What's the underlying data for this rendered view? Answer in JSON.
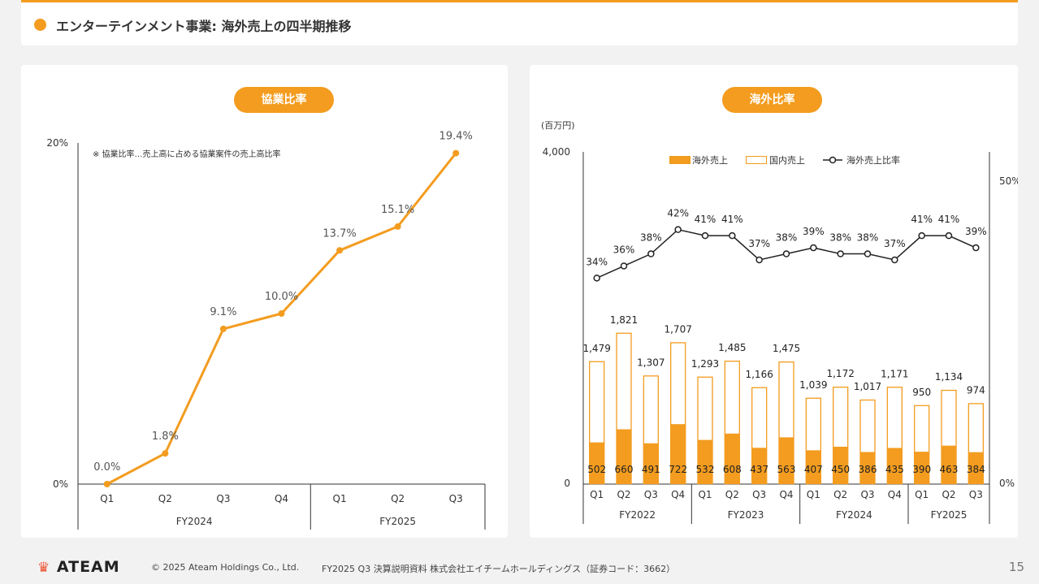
{
  "header": {
    "title": "エンターテインメント事業: 海外売上の四半期推移"
  },
  "colors": {
    "accent": "#f39c1f",
    "line_black": "#222222",
    "axis": "#333333"
  },
  "chart_data": [
    {
      "type": "line",
      "title": "協業比率",
      "note": "※  協業比率…売上高に占める協業案件の売上高比率",
      "quarters": [
        "Q1",
        "Q2",
        "Q3",
        "Q4",
        "Q1",
        "Q2",
        "Q3"
      ],
      "fiscal_years": [
        {
          "label": "FY2024",
          "count": 4
        },
        {
          "label": "FY2025",
          "count": 3
        }
      ],
      "values": [
        0.0,
        1.8,
        9.1,
        10.0,
        13.7,
        15.1,
        19.4
      ],
      "value_labels": [
        "0.0%",
        "1.8%",
        "9.1%",
        "10.0%",
        "13.7%",
        "15.1%",
        "19.4%"
      ],
      "y_min_label": "0%",
      "y_max_label": "20%",
      "ylim": [
        0,
        20
      ]
    },
    {
      "type": "bar",
      "title": "海外比率",
      "unit_label": "(百万円)",
      "quarters": [
        "Q1",
        "Q2",
        "Q3",
        "Q4",
        "Q1",
        "Q2",
        "Q3",
        "Q4",
        "Q1",
        "Q2",
        "Q3",
        "Q4",
        "Q1",
        "Q2",
        "Q3"
      ],
      "fiscal_years": [
        {
          "label": "FY2022",
          "count": 4
        },
        {
          "label": "FY2023",
          "count": 4
        },
        {
          "label": "FY2024",
          "count": 4
        },
        {
          "label": "FY2025",
          "count": 3
        }
      ],
      "series": [
        {
          "name": "海外売上",
          "values": [
            502,
            660,
            491,
            722,
            532,
            608,
            437,
            563,
            407,
            450,
            386,
            435,
            390,
            463,
            384
          ]
        },
        {
          "name": "国内売上",
          "values": [
            977,
            1161,
            816,
            985,
            761,
            877,
            729,
            912,
            632,
            722,
            631,
            736,
            560,
            671,
            590
          ]
        },
        {
          "name": "海外売上比率",
          "values": [
            34,
            36,
            38,
            42,
            41,
            41,
            37,
            38,
            39,
            38,
            38,
            37,
            41,
            41,
            39
          ]
        }
      ],
      "total_labels": [
        "1,479",
        "1,821",
        "1,307",
        "1,707",
        "1,293",
        "1,485",
        "1,166",
        "1,475",
        "1,039",
        "1,172",
        "1,017",
        "1,171",
        "950",
        "1,134",
        "974"
      ],
      "overseas_labels": [
        "502",
        "660",
        "491",
        "722",
        "532",
        "608",
        "437",
        "563",
        "407",
        "450",
        "386",
        "435",
        "390",
        "463",
        "384"
      ],
      "ratio_labels": [
        "34%",
        "36%",
        "38%",
        "42%",
        "41%",
        "41%",
        "37%",
        "38%",
        "39%",
        "38%",
        "38%",
        "37%",
        "41%",
        "41%",
        "39%"
      ],
      "ylim_left": [
        0,
        4000
      ],
      "ylim_right": [
        0,
        50
      ],
      "y_left_labels": [
        "0",
        "4,000"
      ],
      "y_right_labels": [
        "0%",
        "50%"
      ],
      "legend_position": "top"
    }
  ],
  "footer": {
    "logo": "ATEAM",
    "copyright": "© 2025 Ateam Holdings Co., Ltd.",
    "document": "FY2025 Q3 決算説明資料 株式会社エイチームホールディングス（証券コード：3662）",
    "page": "15"
  }
}
